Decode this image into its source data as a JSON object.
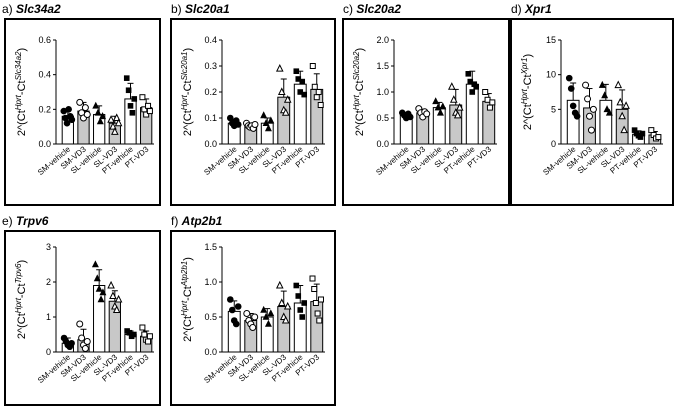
{
  "chart_data": [
    {
      "id": "a",
      "type": "bar",
      "panel_label": "a)",
      "title": "Slc34a2",
      "ylabel": {
        "prefix": "2^(Ct",
        "sup1": "Hprt",
        "mid": "-Ct",
        "sup2": "Slc34a2",
        "suffix": ")"
      },
      "ylim": [
        0,
        0.6
      ],
      "yticks": [
        "0.0",
        "0.2",
        "0.4",
        "0.6"
      ],
      "ytick_values": [
        0,
        0.2,
        0.4,
        0.6
      ],
      "categories": [
        "SM-vehicle",
        "SM-VD3",
        "SL-vehicle",
        "SL-VD3",
        "PT-vehicle",
        "PT-VD3"
      ],
      "means": [
        0.16,
        0.19,
        0.17,
        0.12,
        0.26,
        0.21
      ],
      "errors": [
        0.04,
        0.05,
        0.05,
        0.04,
        0.09,
        0.05
      ],
      "points": [
        [
          0.19,
          0.15,
          0.12,
          0.2,
          0.16,
          0.14
        ],
        [
          0.24,
          0.18,
          0.15,
          0.21,
          0.17
        ],
        [
          0.22,
          0.18,
          0.13,
          0.16
        ],
        [
          0.14,
          0.1,
          0.07,
          0.15,
          0.12
        ],
        [
          0.38,
          0.31,
          0.22,
          0.18,
          0.26
        ],
        [
          0.27,
          0.2,
          0.17,
          0.22,
          0.19
        ]
      ]
    },
    {
      "id": "b",
      "type": "bar",
      "panel_label": "b)",
      "title": "Slc20a1",
      "ylabel": {
        "prefix": "2^(Ct",
        "sup1": "Hprt",
        "mid": "-Ct",
        "sup2": "Slc20a1",
        "suffix": ")"
      },
      "ylim": [
        0,
        0.4
      ],
      "yticks": [
        "0.0",
        "0.1",
        "0.2",
        "0.3",
        "0.4"
      ],
      "ytick_values": [
        0,
        0.1,
        0.2,
        0.3,
        0.4
      ],
      "categories": [
        "SM-vehicle",
        "SM-VD3",
        "SL-vehicle",
        "SL-VD3",
        "PT-vehicle",
        "PT-VD3"
      ],
      "means": [
        0.08,
        0.07,
        0.08,
        0.18,
        0.23,
        0.21
      ],
      "errors": [
        0.015,
        0.01,
        0.02,
        0.07,
        0.05,
        0.06
      ],
      "points": [
        [
          0.1,
          0.08,
          0.07,
          0.09,
          0.075
        ],
        [
          0.08,
          0.07,
          0.065,
          0.07,
          0.06,
          0.075
        ],
        [
          0.11,
          0.08,
          0.06,
          0.09
        ],
        [
          0.29,
          0.2,
          0.13,
          0.12,
          0.17
        ],
        [
          0.28,
          0.25,
          0.2,
          0.24,
          0.19
        ],
        [
          0.3,
          0.22,
          0.18,
          0.2,
          0.15
        ]
      ]
    },
    {
      "id": "c",
      "type": "bar",
      "panel_label": "c)",
      "title": "Slc20a2",
      "ylabel": {
        "prefix": "2^(Ct",
        "sup1": "Hprt",
        "mid": "-Ct",
        "sup2": "Slc20a2",
        "suffix": ")"
      },
      "ylim": [
        0,
        2.0
      ],
      "yticks": [
        "0.0",
        "0.5",
        "1.0",
        "1.5",
        "2.0"
      ],
      "ytick_values": [
        0,
        0.5,
        1.0,
        1.5,
        2.0
      ],
      "categories": [
        "SM-vehicle",
        "SM-VD3",
        "SL-vehicle",
        "SL-VD3",
        "PT-vehicle",
        "PT-VD3"
      ],
      "means": [
        0.55,
        0.6,
        0.7,
        0.75,
        1.15,
        0.82
      ],
      "errors": [
        0.05,
        0.07,
        0.1,
        0.3,
        0.25,
        0.15
      ],
      "points": [
        [
          0.6,
          0.55,
          0.5,
          0.58,
          0.52
        ],
        [
          0.68,
          0.6,
          0.52,
          0.62,
          0.58
        ],
        [
          0.82,
          0.7,
          0.6,
          0.72
        ],
        [
          1.1,
          0.85,
          0.6,
          0.55,
          0.7
        ],
        [
          1.35,
          1.2,
          1.0,
          1.15,
          1.1
        ],
        [
          1.0,
          0.85,
          0.7,
          0.8
        ]
      ]
    },
    {
      "id": "d",
      "type": "bar",
      "panel_label": "d)",
      "title": "Xpr1",
      "ylabel": {
        "prefix": "2^(Ct",
        "sup1": "Hprt",
        "mid": "-Ct",
        "sup2": "Xpr1",
        "suffix": ")"
      },
      "ylim": [
        0,
        15
      ],
      "yticks": [
        "0",
        "5",
        "10",
        "15"
      ],
      "ytick_values": [
        0,
        5,
        10,
        15
      ],
      "categories": [
        "SM-vehicle",
        "SM-VD3",
        "SL-vehicle",
        "SL-VD3",
        "PT-vehicle",
        "PT-VD3"
      ],
      "means": [
        6.3,
        5.2,
        6.3,
        5.0,
        1.4,
        1.3
      ],
      "errors": [
        2.5,
        2.8,
        2.3,
        2.8,
        0.5,
        0.5
      ],
      "points": [
        [
          9.5,
          8.0,
          5.5,
          4.5,
          4.0
        ],
        [
          8.5,
          6.5,
          4.0,
          2.0,
          5.0
        ],
        [
          8.5,
          7.0,
          5.0,
          4.5
        ],
        [
          8.5,
          6.0,
          4.0,
          2.0,
          5.5
        ],
        [
          2.0,
          1.5,
          1.2,
          1.0,
          1.5
        ],
        [
          2.0,
          1.3,
          0.8,
          1.0
        ]
      ]
    },
    {
      "id": "e",
      "type": "bar",
      "panel_label": "e)",
      "title": "Trpv6",
      "ylabel": {
        "prefix": "2^(Ct",
        "sup1": "Hprt",
        "mid": "-Ct",
        "sup2": "Trpv6",
        "suffix": ")"
      },
      "ylim": [
        0,
        3
      ],
      "yticks": [
        "0",
        "1",
        "2",
        "3"
      ],
      "ytick_values": [
        0,
        1,
        2,
        3
      ],
      "categories": [
        "SM-vehicle",
        "SM-VD3",
        "SL-vehicle",
        "SL-VD3",
        "PT-vehicle",
        "PT-VD3"
      ],
      "means": [
        0.25,
        0.35,
        1.9,
        1.45,
        0.5,
        0.45
      ],
      "errors": [
        0.15,
        0.3,
        0.45,
        0.3,
        0.1,
        0.15
      ],
      "points": [
        [
          0.4,
          0.3,
          0.2,
          0.15,
          0.25
        ],
        [
          0.8,
          0.4,
          0.2,
          0.1,
          0.3
        ],
        [
          2.5,
          2.1,
          1.8,
          1.5,
          1.7
        ],
        [
          1.9,
          1.6,
          1.3,
          1.2,
          1.5
        ],
        [
          0.6,
          0.55,
          0.45,
          0.5
        ],
        [
          0.7,
          0.5,
          0.35,
          0.3,
          0.45
        ]
      ]
    },
    {
      "id": "f",
      "type": "bar",
      "panel_label": "f)",
      "title": "Atp2b1",
      "ylabel": {
        "prefix": "2^(Ct",
        "sup1": "Hprt",
        "mid": "-Ct",
        "sup2": "Atp2b1",
        "suffix": ")"
      },
      "ylim": [
        0,
        1.5
      ],
      "yticks": [
        "0.0",
        "0.5",
        "1.0",
        "1.5"
      ],
      "ytick_values": [
        0,
        0.5,
        1.0,
        1.5
      ],
      "categories": [
        "SM-vehicle",
        "SM-VD3",
        "SL-vehicle",
        "SL-VD3",
        "PT-vehicle",
        "PT-VD3"
      ],
      "means": [
        0.58,
        0.45,
        0.5,
        0.65,
        0.7,
        0.72
      ],
      "errors": [
        0.15,
        0.1,
        0.12,
        0.22,
        0.25,
        0.25
      ],
      "points": [
        [
          0.75,
          0.6,
          0.45,
          0.4,
          0.65
        ],
        [
          0.55,
          0.45,
          0.4,
          0.35,
          0.5
        ],
        [
          0.6,
          0.5,
          0.4,
          0.55
        ],
        [
          0.95,
          0.7,
          0.5,
          0.45,
          0.65
        ],
        [
          0.95,
          0.8,
          0.6,
          0.5,
          0.7
        ],
        [
          1.05,
          0.9,
          0.7,
          0.55,
          0.45,
          0.75
        ]
      ]
    }
  ]
}
